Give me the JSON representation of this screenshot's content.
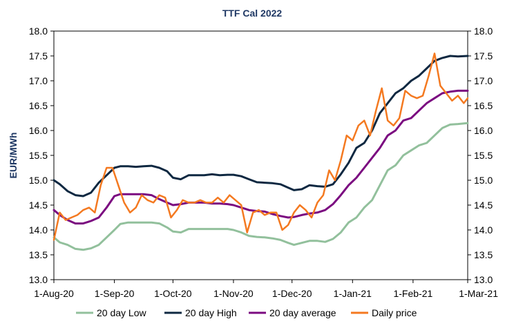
{
  "chart_data": {
    "type": "line",
    "title": "TTF Cal 2022",
    "ylabel": "EUR/MWh",
    "ylabel_right": "",
    "xlabel": "",
    "ylim": [
      13.0,
      18.0
    ],
    "yticks": [
      "13.0",
      "13.5",
      "14.0",
      "14.5",
      "15.0",
      "15.5",
      "16.0",
      "16.5",
      "17.0",
      "17.5",
      "18.0"
    ],
    "yticks_right": [
      "13.0",
      "13.5",
      "14.0",
      "14.5",
      "15.0",
      "15.5",
      "16.0",
      "16.5",
      "17.0",
      "17.5",
      "18.0"
    ],
    "xlim": [
      "2020-08-01",
      "2021-03-01"
    ],
    "xticks": [
      {
        "label": "1-Aug-20",
        "date": "2020-08-01"
      },
      {
        "label": "1-Sep-20",
        "date": "2020-09-01"
      },
      {
        "label": "1-Oct-20",
        "date": "2020-10-01"
      },
      {
        "label": "1-Nov-20",
        "date": "2020-11-01"
      },
      {
        "label": "1-Dec-20",
        "date": "2020-12-01"
      },
      {
        "label": "1-Jan-21",
        "date": "2021-01-01"
      },
      {
        "label": "1-Feb-21",
        "date": "2021-02-01"
      },
      {
        "label": "1-Mar-21",
        "date": "2021-03-01"
      }
    ],
    "grid": false,
    "legend_position": "bottom",
    "series": [
      {
        "name": "20 day Low",
        "color": "#92c09c",
        "x": [
          "2020-08-01",
          "2020-08-04",
          "2020-08-08",
          "2020-08-12",
          "2020-08-16",
          "2020-08-20",
          "2020-08-24",
          "2020-08-28",
          "2020-09-01",
          "2020-09-04",
          "2020-09-08",
          "2020-09-12",
          "2020-09-16",
          "2020-09-20",
          "2020-09-24",
          "2020-09-28",
          "2020-10-01",
          "2020-10-05",
          "2020-10-09",
          "2020-10-13",
          "2020-10-17",
          "2020-10-21",
          "2020-10-25",
          "2020-10-29",
          "2020-11-01",
          "2020-11-05",
          "2020-11-09",
          "2020-11-13",
          "2020-11-17",
          "2020-11-21",
          "2020-11-25",
          "2020-11-29",
          "2020-12-02",
          "2020-12-06",
          "2020-12-10",
          "2020-12-14",
          "2020-12-18",
          "2020-12-22",
          "2020-12-26",
          "2020-12-30",
          "2021-01-03",
          "2021-01-07",
          "2021-01-11",
          "2021-01-15",
          "2021-01-19",
          "2021-01-23",
          "2021-01-27",
          "2021-01-31",
          "2021-02-04",
          "2021-02-08",
          "2021-02-12",
          "2021-02-16",
          "2021-02-20",
          "2021-02-24",
          "2021-03-01"
        ],
        "y": [
          13.85,
          13.75,
          13.7,
          13.62,
          13.6,
          13.63,
          13.7,
          13.85,
          14.0,
          14.12,
          14.15,
          14.15,
          14.15,
          14.15,
          14.13,
          14.05,
          13.97,
          13.95,
          14.02,
          14.02,
          14.02,
          14.02,
          14.02,
          14.02,
          14.0,
          13.95,
          13.88,
          13.86,
          13.85,
          13.83,
          13.8,
          13.74,
          13.7,
          13.74,
          13.78,
          13.78,
          13.76,
          13.82,
          13.95,
          14.15,
          14.25,
          14.45,
          14.6,
          14.9,
          15.2,
          15.3,
          15.5,
          15.6,
          15.7,
          15.75,
          15.9,
          16.05,
          16.12,
          16.13,
          16.15
        ]
      },
      {
        "name": "20 day High",
        "color": "#0e2841",
        "x": [
          "2020-08-01",
          "2020-08-04",
          "2020-08-08",
          "2020-08-12",
          "2020-08-16",
          "2020-08-20",
          "2020-08-24",
          "2020-08-28",
          "2020-09-01",
          "2020-09-04",
          "2020-09-08",
          "2020-09-12",
          "2020-09-16",
          "2020-09-20",
          "2020-09-24",
          "2020-09-28",
          "2020-10-01",
          "2020-10-05",
          "2020-10-09",
          "2020-10-13",
          "2020-10-17",
          "2020-10-21",
          "2020-10-25",
          "2020-10-29",
          "2020-11-01",
          "2020-11-05",
          "2020-11-09",
          "2020-11-13",
          "2020-11-17",
          "2020-11-21",
          "2020-11-25",
          "2020-11-29",
          "2020-12-02",
          "2020-12-06",
          "2020-12-10",
          "2020-12-14",
          "2020-12-18",
          "2020-12-22",
          "2020-12-26",
          "2020-12-30",
          "2021-01-03",
          "2021-01-07",
          "2021-01-11",
          "2021-01-15",
          "2021-01-19",
          "2021-01-23",
          "2021-01-27",
          "2021-01-31",
          "2021-02-04",
          "2021-02-08",
          "2021-02-12",
          "2021-02-16",
          "2021-02-20",
          "2021-02-24",
          "2021-03-01"
        ],
        "y": [
          15.0,
          14.92,
          14.78,
          14.7,
          14.68,
          14.75,
          14.95,
          15.1,
          15.25,
          15.28,
          15.28,
          15.27,
          15.28,
          15.29,
          15.25,
          15.18,
          15.05,
          15.02,
          15.1,
          15.1,
          15.1,
          15.12,
          15.1,
          15.11,
          15.11,
          15.08,
          15.02,
          14.96,
          14.95,
          14.94,
          14.92,
          14.85,
          14.8,
          14.82,
          14.9,
          14.88,
          14.87,
          14.92,
          15.12,
          15.35,
          15.65,
          15.75,
          16.0,
          16.35,
          16.55,
          16.75,
          16.85,
          17.0,
          17.1,
          17.25,
          17.4,
          17.46,
          17.5,
          17.49,
          17.5
        ]
      },
      {
        "name": "20 day average",
        "color": "#7b0a80",
        "x": [
          "2020-08-01",
          "2020-08-04",
          "2020-08-08",
          "2020-08-12",
          "2020-08-16",
          "2020-08-20",
          "2020-08-24",
          "2020-08-28",
          "2020-09-01",
          "2020-09-04",
          "2020-09-08",
          "2020-09-12",
          "2020-09-16",
          "2020-09-20",
          "2020-09-24",
          "2020-09-28",
          "2020-10-01",
          "2020-10-05",
          "2020-10-09",
          "2020-10-13",
          "2020-10-17",
          "2020-10-21",
          "2020-10-25",
          "2020-10-29",
          "2020-11-01",
          "2020-11-05",
          "2020-11-09",
          "2020-11-13",
          "2020-11-17",
          "2020-11-21",
          "2020-11-25",
          "2020-11-29",
          "2020-12-02",
          "2020-12-06",
          "2020-12-10",
          "2020-12-14",
          "2020-12-18",
          "2020-12-22",
          "2020-12-26",
          "2020-12-30",
          "2021-01-03",
          "2021-01-07",
          "2021-01-11",
          "2021-01-15",
          "2021-01-19",
          "2021-01-23",
          "2021-01-27",
          "2021-01-31",
          "2021-02-04",
          "2021-02-08",
          "2021-02-12",
          "2021-02-16",
          "2021-02-20",
          "2021-02-24",
          "2021-03-01"
        ],
        "y": [
          14.4,
          14.3,
          14.2,
          14.13,
          14.13,
          14.18,
          14.25,
          14.45,
          14.68,
          14.72,
          14.72,
          14.72,
          14.72,
          14.7,
          14.62,
          14.55,
          14.5,
          14.52,
          14.55,
          14.55,
          14.55,
          14.53,
          14.53,
          14.52,
          14.5,
          14.45,
          14.4,
          14.38,
          14.37,
          14.32,
          14.28,
          14.25,
          14.26,
          14.3,
          14.33,
          14.35,
          14.4,
          14.52,
          14.7,
          14.9,
          15.05,
          15.25,
          15.45,
          15.65,
          15.9,
          16.0,
          16.2,
          16.25,
          16.4,
          16.55,
          16.65,
          16.75,
          16.78,
          16.8,
          16.8
        ]
      },
      {
        "name": "Daily price",
        "color": "#f47920",
        "x": [
          "2020-08-01",
          "2020-08-04",
          "2020-08-07",
          "2020-08-10",
          "2020-08-13",
          "2020-08-16",
          "2020-08-19",
          "2020-08-22",
          "2020-08-25",
          "2020-08-28",
          "2020-08-31",
          "2020-09-03",
          "2020-09-06",
          "2020-09-09",
          "2020-09-12",
          "2020-09-15",
          "2020-09-18",
          "2020-09-21",
          "2020-09-24",
          "2020-09-27",
          "2020-09-30",
          "2020-10-03",
          "2020-10-06",
          "2020-10-09",
          "2020-10-12",
          "2020-10-15",
          "2020-10-18",
          "2020-10-21",
          "2020-10-24",
          "2020-10-27",
          "2020-10-30",
          "2020-11-02",
          "2020-11-05",
          "2020-11-08",
          "2020-11-11",
          "2020-11-14",
          "2020-11-17",
          "2020-11-20",
          "2020-11-23",
          "2020-11-26",
          "2020-11-29",
          "2020-12-02",
          "2020-12-05",
          "2020-12-08",
          "2020-12-11",
          "2020-12-14",
          "2020-12-17",
          "2020-12-20",
          "2020-12-23",
          "2020-12-26",
          "2020-12-29",
          "2021-01-01",
          "2021-01-04",
          "2021-01-07",
          "2021-01-10",
          "2021-01-13",
          "2021-01-16",
          "2021-01-19",
          "2021-01-22",
          "2021-01-25",
          "2021-01-28",
          "2021-01-31",
          "2021-02-03",
          "2021-02-06",
          "2021-02-09",
          "2021-02-12",
          "2021-02-15",
          "2021-02-18",
          "2021-02-21",
          "2021-02-24",
          "2021-02-27",
          "2021-03-01"
        ],
        "y": [
          13.8,
          14.35,
          14.2,
          14.25,
          14.3,
          14.4,
          14.45,
          14.35,
          14.9,
          15.25,
          15.25,
          14.9,
          14.55,
          14.35,
          14.45,
          14.7,
          14.6,
          14.55,
          14.7,
          14.65,
          14.25,
          14.4,
          14.6,
          14.55,
          14.55,
          14.6,
          14.55,
          14.55,
          14.65,
          14.55,
          14.7,
          14.6,
          14.5,
          13.95,
          14.35,
          14.4,
          14.3,
          14.35,
          14.35,
          14.0,
          14.1,
          14.35,
          14.5,
          14.4,
          14.25,
          14.55,
          14.7,
          15.2,
          15.0,
          15.4,
          15.9,
          15.8,
          16.1,
          16.2,
          15.9,
          16.4,
          16.85,
          16.2,
          16.1,
          16.25,
          16.8,
          16.7,
          16.65,
          16.7,
          17.1,
          17.55,
          16.9,
          16.75,
          16.6,
          16.7,
          16.55,
          16.65
        ]
      }
    ]
  }
}
